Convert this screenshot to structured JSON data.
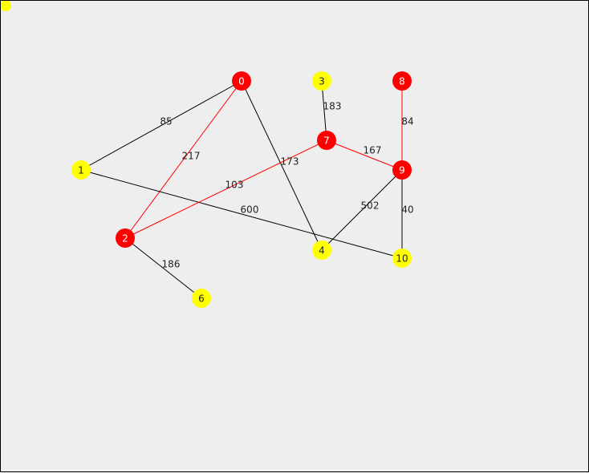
{
  "colors": {
    "background": "#eeeeee",
    "red_node": "#ff0000",
    "yellow_node": "#ffff00",
    "red_edge": "#ff0000",
    "black_edge": "#000000"
  },
  "graph": {
    "nodes": [
      {
        "id": "0",
        "color": "red"
      },
      {
        "id": "1",
        "color": "yellow"
      },
      {
        "id": "2",
        "color": "red"
      },
      {
        "id": "3",
        "color": "yellow"
      },
      {
        "id": "4",
        "color": "yellow"
      },
      {
        "id": "6",
        "color": "yellow"
      },
      {
        "id": "7",
        "color": "red"
      },
      {
        "id": "8",
        "color": "red"
      },
      {
        "id": "9",
        "color": "red"
      },
      {
        "id": "10",
        "color": "yellow"
      }
    ],
    "edges": [
      {
        "from": "0",
        "to": "1",
        "weight": "85",
        "color": "black"
      },
      {
        "from": "0",
        "to": "2",
        "weight": "217",
        "color": "red"
      },
      {
        "from": "0",
        "to": "4",
        "weight": "173",
        "color": "black"
      },
      {
        "from": "1",
        "to": "10",
        "weight": "600",
        "color": "black"
      },
      {
        "from": "2",
        "to": "7",
        "weight": "103",
        "color": "red"
      },
      {
        "from": "2",
        "to": "6",
        "weight": "186",
        "color": "black"
      },
      {
        "from": "3",
        "to": "7",
        "weight": "183",
        "color": "black"
      },
      {
        "from": "7",
        "to": "9",
        "weight": "167",
        "color": "red"
      },
      {
        "from": "8",
        "to": "9",
        "weight": "84",
        "color": "red"
      },
      {
        "from": "9",
        "to": "4",
        "weight": "502",
        "color": "black"
      },
      {
        "from": "9",
        "to": "10",
        "weight": "40",
        "color": "black"
      }
    ]
  }
}
